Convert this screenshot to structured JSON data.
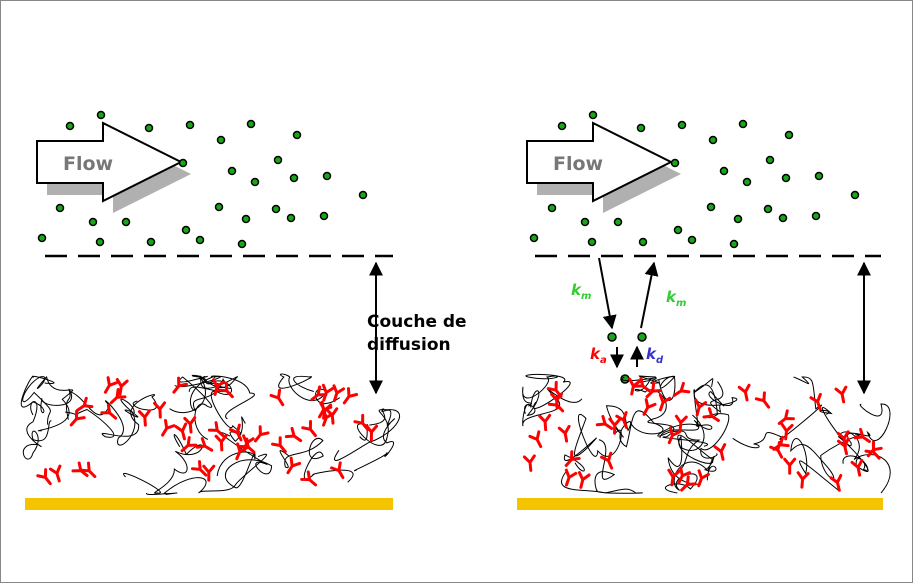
{
  "panels": [
    {
      "id": "left",
      "flow_label": "Flow"
    },
    {
      "id": "right",
      "flow_label": "Flow"
    }
  ],
  "diffusion_label": {
    "line1": "Couche de",
    "line2": "diffusion"
  },
  "rate_labels": {
    "km_left": {
      "base": "k",
      "sub": "m"
    },
    "km_right": {
      "base": "k",
      "sub": "m"
    },
    "ka": {
      "base": "k",
      "sub": "a"
    },
    "kd": {
      "base": "k",
      "sub": "d"
    }
  },
  "colors": {
    "analyte": "#1aa61a",
    "receptor": "#ff0000",
    "substrate": "#f5c400",
    "km": "#33cc33",
    "ka": "#ff0000",
    "kd": "#3333cc",
    "flow_text": "#777777"
  },
  "icons": [
    "flow-arrow",
    "analyte-dot",
    "receptor-y-icon",
    "polymer-mesh",
    "gold-substrate"
  ]
}
